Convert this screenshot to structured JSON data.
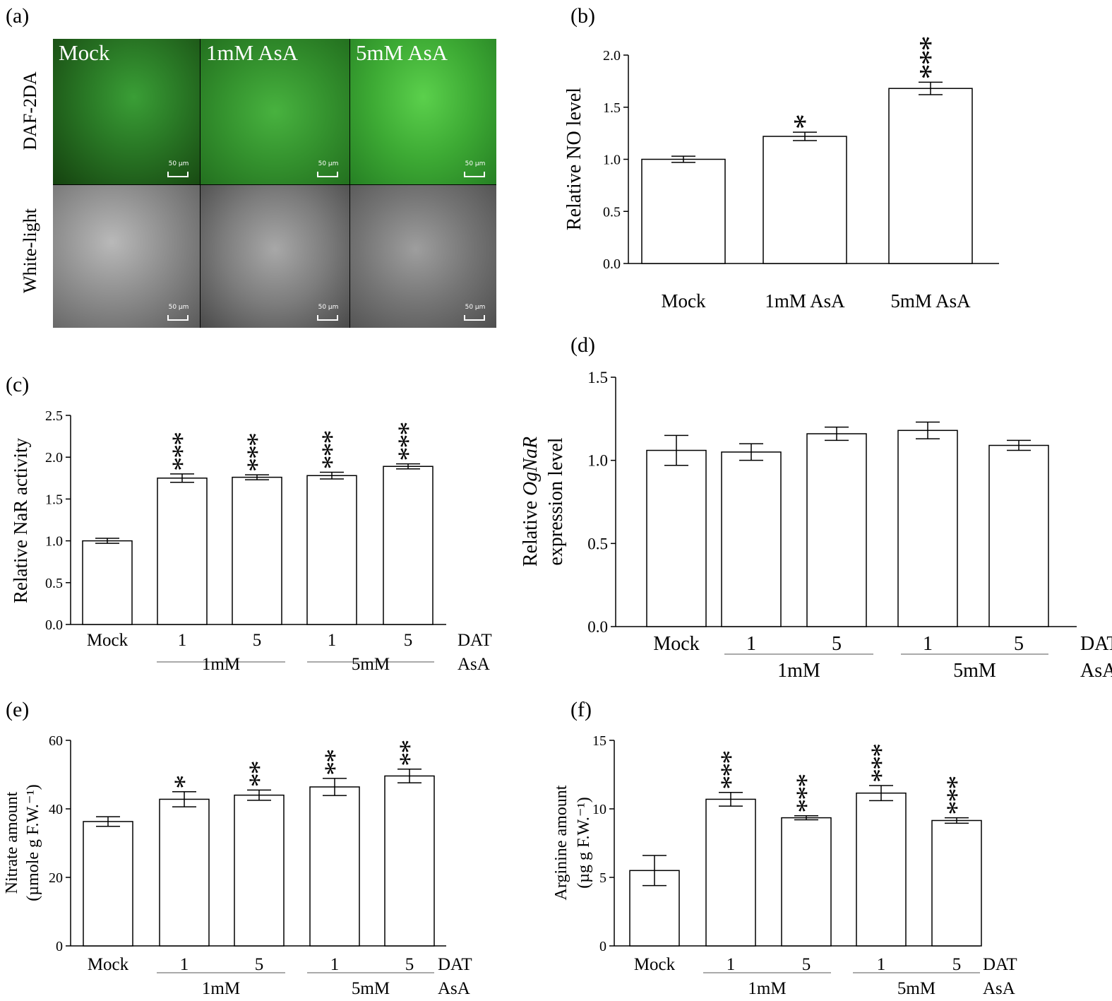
{
  "panels": {
    "a": "(a)",
    "b": "(b)",
    "c": "(c)",
    "d": "(d)",
    "e": "(e)",
    "f": "(f)"
  },
  "micrograph": {
    "conditions": [
      "Mock",
      "1mM AsA",
      "5mM AsA"
    ],
    "rows": [
      "DAF-2DA",
      "White-light"
    ],
    "scalebar": "50 µm",
    "colors": {
      "daf": "#2fa52f",
      "white": "#9a9a9a"
    }
  },
  "chart_data": [
    {
      "id": "b",
      "type": "bar",
      "categories": [
        "Mock",
        "1mM AsA",
        "5mM AsA"
      ],
      "values": [
        1.0,
        1.22,
        1.68
      ],
      "errors": [
        0.03,
        0.04,
        0.06
      ],
      "significance": [
        "",
        "*",
        "***"
      ],
      "ylabel": "Relative NO level",
      "ylim": [
        0,
        2.0
      ],
      "yticks": [
        "0.0",
        "0.5",
        "1.0",
        "1.5",
        "2.0"
      ]
    },
    {
      "id": "c",
      "type": "bar",
      "categories": [
        "Mock",
        "1",
        "5",
        "1",
        "5"
      ],
      "values": [
        1.0,
        1.75,
        1.76,
        1.78,
        1.89
      ],
      "errors": [
        0.03,
        0.05,
        0.03,
        0.04,
        0.03
      ],
      "significance": [
        "",
        "***",
        "***",
        "***",
        "***"
      ],
      "groups": [
        "1mM",
        "5mM"
      ],
      "row_labels": [
        "DAT",
        "AsA"
      ],
      "ylabel": "Relative NaR  activity",
      "ylim": [
        0,
        2.5
      ],
      "yticks": [
        "0.0",
        "0.5",
        "1.0",
        "1.5",
        "2.0",
        "2.5"
      ]
    },
    {
      "id": "d",
      "type": "bar",
      "categories": [
        "Mock",
        "1",
        "5",
        "1",
        "5"
      ],
      "values": [
        1.06,
        1.05,
        1.16,
        1.18,
        1.09
      ],
      "errors": [
        0.09,
        0.05,
        0.04,
        0.05,
        0.03
      ],
      "significance": [
        "",
        "",
        "",
        "",
        ""
      ],
      "groups": [
        "1mM",
        "5mM"
      ],
      "row_labels": [
        "DAT",
        "AsA"
      ],
      "ylabel_parts": [
        "Relative ",
        "OgNaR"
      ],
      "ylabel2": "expression level",
      "ylim": [
        0,
        1.5
      ],
      "yticks": [
        "0.0",
        "0.5",
        "1.0",
        "1.5"
      ]
    },
    {
      "id": "e",
      "type": "bar",
      "categories": [
        "Mock",
        "1",
        "5",
        "1",
        "5"
      ],
      "values": [
        36.3,
        42.8,
        44.0,
        46.4,
        49.6
      ],
      "errors": [
        1.4,
        2.2,
        1.5,
        2.5,
        2.0
      ],
      "significance": [
        "",
        "*",
        "**",
        "**",
        "**"
      ],
      "groups": [
        "1mM",
        "5mM"
      ],
      "row_labels": [
        "DAT",
        "AsA"
      ],
      "ylabel": "Nitrate amount",
      "ylabel2": "(µmole  g F.W.⁻¹)",
      "ylim": [
        0,
        60
      ],
      "yticks": [
        "0",
        "20",
        "40",
        "60"
      ]
    },
    {
      "id": "f",
      "type": "bar",
      "categories": [
        "Mock",
        "1",
        "5",
        "1",
        "5"
      ],
      "values": [
        5.5,
        10.7,
        9.35,
        11.15,
        9.15
      ],
      "errors": [
        1.1,
        0.5,
        0.15,
        0.55,
        0.2
      ],
      "significance": [
        "",
        "***",
        "***",
        "***",
        "***"
      ],
      "groups": [
        "1mM",
        "5mM"
      ],
      "row_labels": [
        "DAT",
        "AsA"
      ],
      "ylabel": "Arginine  amount",
      "ylabel2": "(µg g F.W.⁻¹)",
      "ylim": [
        0,
        15
      ],
      "yticks": [
        "0",
        "5",
        "10",
        "15"
      ]
    }
  ]
}
